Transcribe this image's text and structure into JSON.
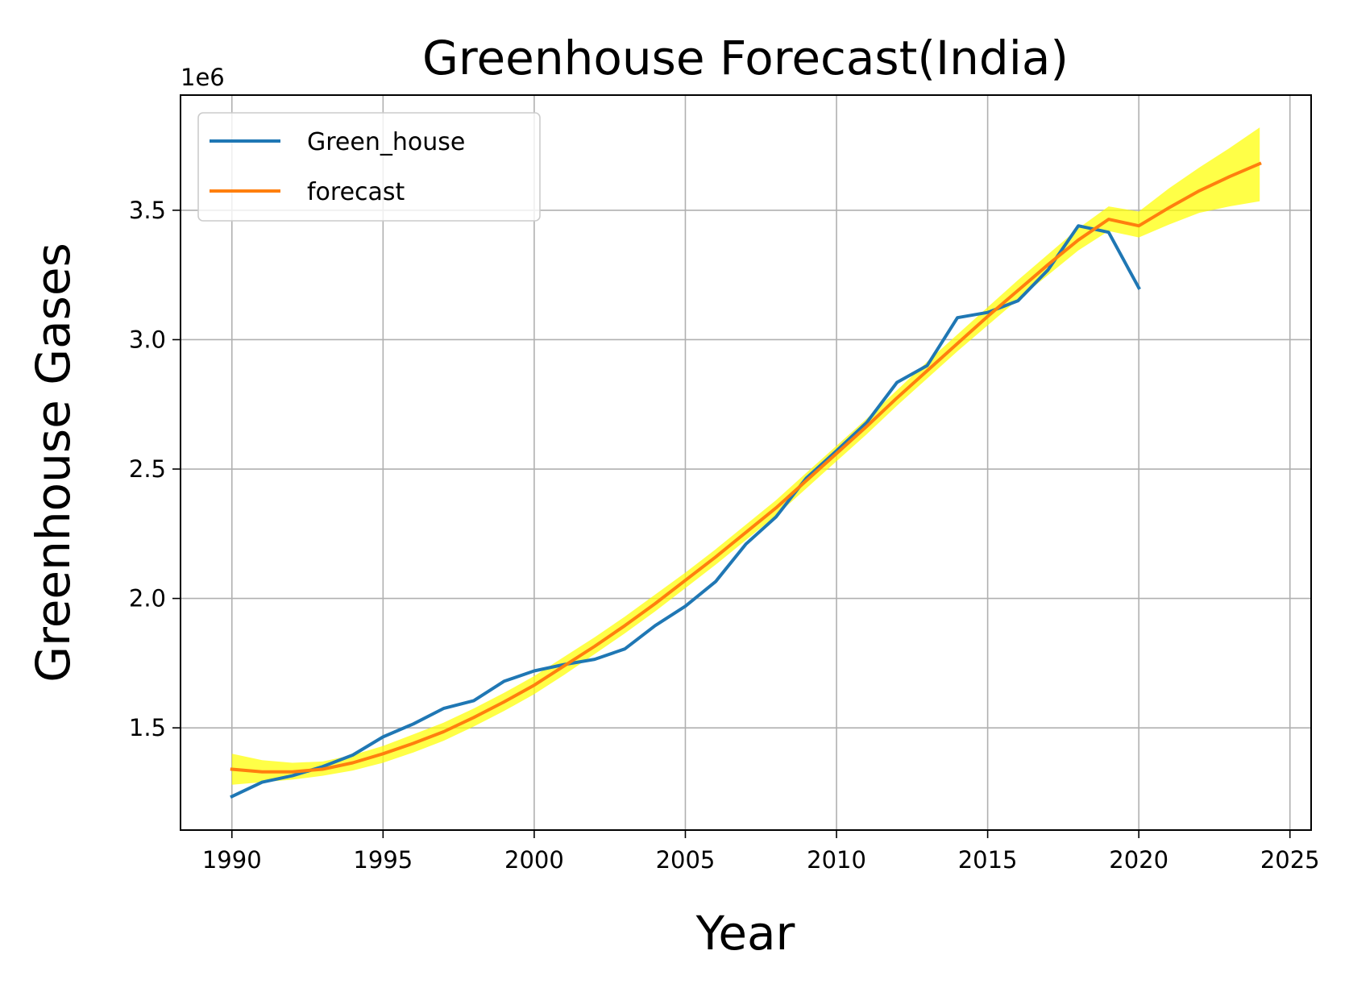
{
  "chart_data": {
    "type": "line",
    "title": "Greenhouse Forecast(India)",
    "xlabel": "Year",
    "ylabel": "Greenhouse Gases",
    "y_offset_label": "1e6",
    "xlim": [
      1988.3,
      2025.7
    ],
    "ylim": [
      1.105,
      3.945
    ],
    "x_ticks": [
      1990,
      1995,
      2000,
      2005,
      2010,
      2015,
      2020,
      2025
    ],
    "y_ticks": [
      1.5,
      2.0,
      2.5,
      3.0,
      3.5
    ],
    "grid": true,
    "legend_position": "top-left",
    "band_color": "#ffff00",
    "series": [
      {
        "name": "Green_house",
        "color": "#1f77b4",
        "x": [
          1990,
          1991,
          1992,
          1993,
          1994,
          1995,
          1996,
          1997,
          1998,
          1999,
          2000,
          2001,
          2002,
          2003,
          2004,
          2005,
          2006,
          2007,
          2008,
          2009,
          2010,
          2011,
          2012,
          2013,
          2014,
          2015,
          2016,
          2017,
          2018,
          2019,
          2020
        ],
        "values": [
          1.235,
          1.29,
          1.315,
          1.35,
          1.395,
          1.465,
          1.515,
          1.575,
          1.605,
          1.68,
          1.72,
          1.745,
          1.765,
          1.805,
          1.895,
          1.97,
          2.065,
          2.21,
          2.315,
          2.465,
          2.57,
          2.68,
          2.835,
          2.9,
          3.085,
          3.105,
          3.15,
          3.27,
          3.44,
          3.415,
          3.2
        ]
      },
      {
        "name": "forecast",
        "color": "#ff7f0e",
        "x": [
          1990,
          1991,
          1992,
          1993,
          1994,
          1995,
          1996,
          1997,
          1998,
          1999,
          2000,
          2001,
          2002,
          2003,
          2004,
          2005,
          2006,
          2007,
          2008,
          2009,
          2010,
          2011,
          2012,
          2013,
          2014,
          2015,
          2016,
          2017,
          2018,
          2019,
          2020,
          2021,
          2022,
          2023,
          2024
        ],
        "values": [
          1.34,
          1.33,
          1.33,
          1.34,
          1.365,
          1.4,
          1.44,
          1.485,
          1.54,
          1.6,
          1.665,
          1.74,
          1.815,
          1.895,
          1.98,
          2.07,
          2.16,
          2.255,
          2.35,
          2.455,
          2.56,
          2.665,
          2.775,
          2.88,
          2.985,
          3.09,
          3.19,
          3.29,
          3.385,
          3.465,
          3.44,
          3.51,
          3.575,
          3.63,
          3.68
        ],
        "lower": [
          1.28,
          1.29,
          1.3,
          1.315,
          1.335,
          1.365,
          1.405,
          1.45,
          1.505,
          1.565,
          1.63,
          1.705,
          1.785,
          1.865,
          1.95,
          2.04,
          2.13,
          2.225,
          2.32,
          2.425,
          2.53,
          2.635,
          2.745,
          2.85,
          2.955,
          3.055,
          3.155,
          3.25,
          3.345,
          3.42,
          3.395,
          3.445,
          3.49,
          3.515,
          3.535
        ],
        "upper": [
          1.4,
          1.375,
          1.365,
          1.37,
          1.395,
          1.43,
          1.475,
          1.52,
          1.575,
          1.635,
          1.7,
          1.775,
          1.85,
          1.93,
          2.015,
          2.1,
          2.19,
          2.285,
          2.38,
          2.485,
          2.59,
          2.695,
          2.805,
          2.915,
          3.02,
          3.125,
          3.23,
          3.33,
          3.43,
          3.515,
          3.495,
          3.585,
          3.665,
          3.74,
          3.82
        ]
      }
    ]
  }
}
